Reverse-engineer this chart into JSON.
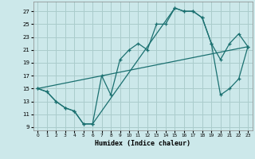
{
  "xlabel": "Humidex (Indice chaleur)",
  "bg_color": "#cce8ea",
  "grid_color": "#aacccc",
  "line_color": "#1a7070",
  "xlim": [
    -0.5,
    23.5
  ],
  "ylim": [
    8.5,
    28.5
  ],
  "xticks": [
    0,
    1,
    2,
    3,
    4,
    5,
    6,
    7,
    8,
    9,
    10,
    11,
    12,
    13,
    14,
    15,
    16,
    17,
    18,
    19,
    20,
    21,
    22,
    23
  ],
  "yticks": [
    9,
    11,
    13,
    15,
    17,
    19,
    21,
    23,
    25,
    27
  ],
  "line1_x": [
    0,
    1,
    2,
    3,
    4,
    5,
    6,
    7,
    8,
    9,
    10,
    11,
    12,
    13,
    14,
    15,
    16,
    17,
    18,
    19,
    20,
    21,
    22,
    23
  ],
  "line1_y": [
    15,
    14.5,
    13,
    12,
    11.5,
    9.5,
    9.5,
    17,
    14,
    19.5,
    21,
    22,
    21,
    25,
    25,
    27.5,
    27,
    27,
    26,
    22,
    19.5,
    22,
    23.5,
    21.5
  ],
  "line2_x": [
    0,
    1,
    2,
    3,
    4,
    5,
    6,
    15,
    16,
    17,
    18,
    19,
    20,
    21,
    22,
    23
  ],
  "line2_y": [
    15,
    14.5,
    13,
    12,
    11.5,
    9.5,
    9.5,
    27.5,
    27,
    27,
    26,
    22,
    14,
    15,
    16.5,
    21.5
  ],
  "line3_x": [
    0,
    23
  ],
  "line3_y": [
    15,
    21.5
  ]
}
